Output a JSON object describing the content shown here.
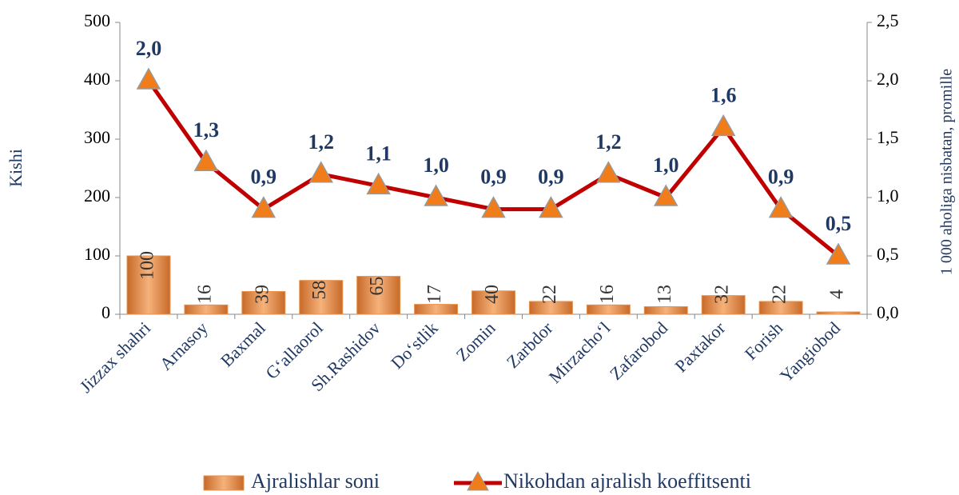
{
  "chart_data": {
    "type": "bar-line",
    "categories": [
      "Jizzax shahri",
      "Arnasoy",
      "Baxmal",
      "G‘allaorol",
      "Sh.Rashidov",
      "Do‘stlik",
      "Zomin",
      "Zarbdor",
      "Mirzacho‘l",
      "Zafarobod",
      "Paxtakor",
      "Forish",
      "Yangiobod"
    ],
    "series": [
      {
        "name": "Ajralishlar soni",
        "color": "#e8924c",
        "axis": "y",
        "values": [
          100,
          16,
          39,
          58,
          65,
          17,
          40,
          22,
          16,
          13,
          32,
          22,
          4
        ]
      },
      {
        "name": "Nikohdan ajralish koeffitsenti",
        "color": "#c00000",
        "marker_color": "#f07d1a",
        "axis": "y2",
        "values": [
          2.0,
          1.3,
          0.9,
          1.2,
          1.1,
          1.0,
          0.9,
          0.9,
          1.2,
          1.0,
          1.6,
          0.9,
          0.5
        ],
        "value_labels": [
          "2,0",
          "1,3",
          "0,9",
          "1,2",
          "1,1",
          "1,0",
          "0,9",
          "0,9",
          "1,2",
          "1,0",
          "1,6",
          "0,9",
          "0,5"
        ]
      }
    ],
    "ylabel": "Kishi",
    "y2label": "1 000 aholiga nisbatan, promille",
    "ylim": [
      0,
      500
    ],
    "yticks": [
      0,
      100,
      200,
      300,
      400,
      500
    ],
    "y2lim": [
      0,
      2.5
    ],
    "y2ticks": [
      {
        "value": 0,
        "label": "0,0"
      },
      {
        "value": 0.5,
        "label": "0,5"
      },
      {
        "value": 1.0,
        "label": "1,0"
      },
      {
        "value": 1.5,
        "label": "1,5"
      },
      {
        "value": 2.0,
        "label": "2,0"
      },
      {
        "value": 2.5,
        "label": "2,5"
      }
    ],
    "legend": "bottom"
  }
}
